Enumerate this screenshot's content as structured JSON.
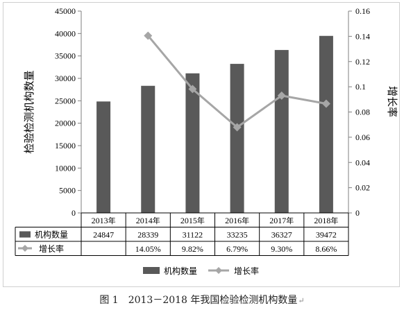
{
  "chart_data": {
    "type": "bar",
    "categories": [
      "2013年",
      "2014年",
      "2015年",
      "2016年",
      "2017年",
      "2018年"
    ],
    "series": [
      {
        "name": "机构数量",
        "type": "bar",
        "axis": "left",
        "color": "#595959",
        "values": [
          24847,
          28339,
          31122,
          33235,
          36327,
          39472
        ],
        "table_values": [
          "24847",
          "28339",
          "31122",
          "33235",
          "36327",
          "39472"
        ]
      },
      {
        "name": "增长率",
        "type": "line",
        "axis": "right",
        "color": "#a6a6a6",
        "values": [
          null,
          0.1405,
          0.0982,
          0.0679,
          0.093,
          0.0866
        ],
        "table_values": [
          "",
          "14.05%",
          "9.82%",
          "6.79%",
          "9.30%",
          "8.66%"
        ]
      }
    ],
    "ylabel": "检验检测机构数量",
    "y2label": "增长率",
    "ylim": [
      0,
      45000
    ],
    "yticks": [
      "0",
      "5000",
      "10000",
      "15000",
      "20000",
      "25000",
      "30000",
      "35000",
      "40000",
      "45000"
    ],
    "y2lim": [
      0,
      0.16
    ],
    "y2ticks": [
      "0",
      "0.02",
      "0.04",
      "0.06",
      "0.08",
      "0.1",
      "0.12",
      "0.14",
      "0.16"
    ],
    "data_table": true,
    "grid": false,
    "legend_position": "bottom"
  },
  "caption": {
    "text": "图 1　2013－2018 年我国检验检测机构数量",
    "mark": "↵"
  }
}
